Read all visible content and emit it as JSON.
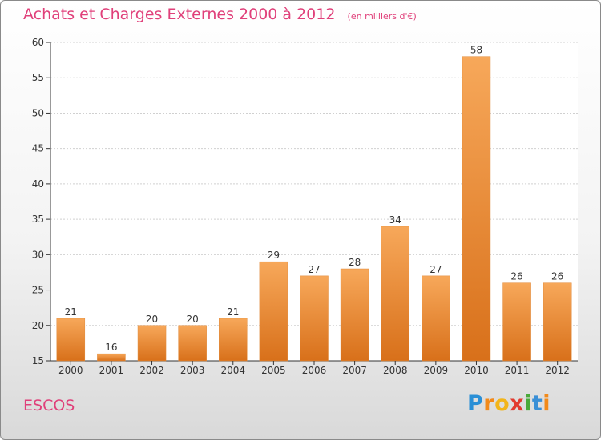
{
  "title": "Achats et Charges Externes 2000 à 2012",
  "subtitle": "(en milliers d'€)",
  "commune": "ESCOS",
  "logo": {
    "letters": [
      "P",
      "r",
      "o",
      "x",
      "i",
      "t",
      "i"
    ],
    "colors": [
      "#2a8fd6",
      "#f28a1a",
      "#f2b51a",
      "#e23a2e",
      "#4aaa3a",
      "#3a8fd6",
      "#f28a1a"
    ]
  },
  "chart_data": {
    "type": "bar",
    "categories": [
      "2000",
      "2001",
      "2002",
      "2003",
      "2004",
      "2005",
      "2006",
      "2007",
      "2008",
      "2009",
      "2010",
      "2011",
      "2012"
    ],
    "values": [
      21,
      16,
      20,
      20,
      21,
      29,
      27,
      28,
      34,
      27,
      58,
      26,
      26
    ],
    "ylim": [
      15,
      60
    ],
    "yticks": [
      15,
      20,
      25,
      30,
      35,
      40,
      45,
      50,
      55,
      60
    ],
    "grid": true,
    "bar_color": "#f0953a",
    "xlabel": "",
    "ylabel": ""
  }
}
